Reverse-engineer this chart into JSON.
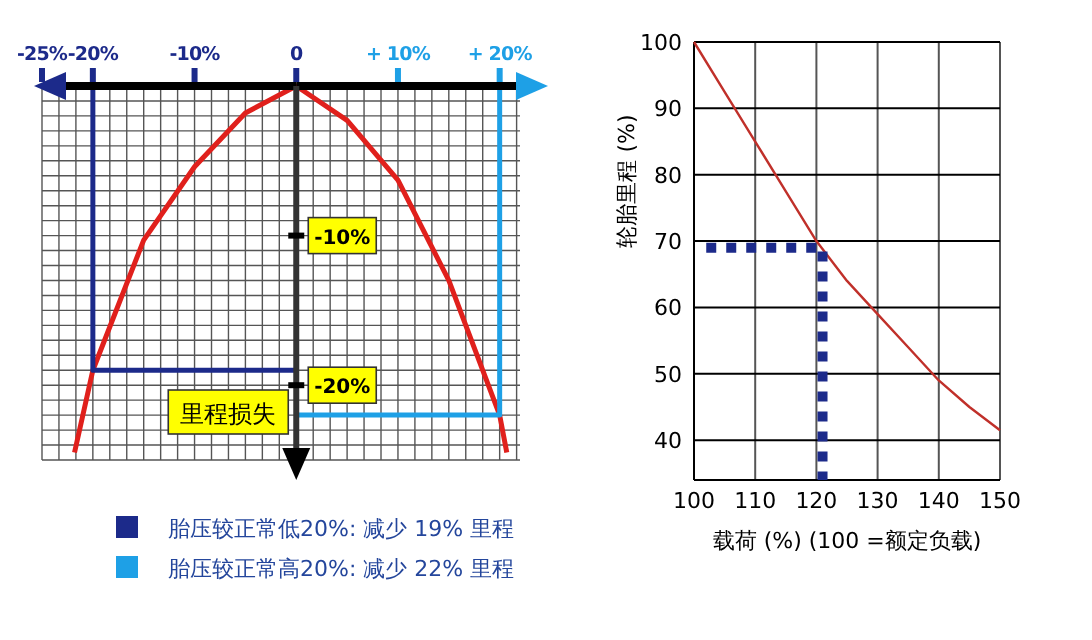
{
  "chart_data": [
    {
      "type": "line",
      "ylabel": "里程损失",
      "xlim": [
        -25,
        22
      ],
      "ylim": [
        -25,
        0
      ],
      "xticks": [
        {
          "value": -25,
          "label": "-25%"
        },
        {
          "value": -20,
          "label": "-20%"
        },
        {
          "value": -10,
          "label": "-10%"
        },
        {
          "value": 0,
          "label": "0"
        },
        {
          "value": 10,
          "label": "+ 10%"
        },
        {
          "value": 20,
          "label": "+ 20%"
        }
      ],
      "yticks": [
        {
          "value": -10,
          "label": "-10%"
        },
        {
          "value": -20,
          "label": "-20%"
        }
      ],
      "grid": true,
      "legend": "bottom",
      "series": [
        {
          "color": "#e0201c",
          "x": [
            -21.8,
            -20,
            -15,
            -10,
            -5,
            0,
            5,
            10,
            15,
            20,
            20.7
          ],
          "values": [
            -24.5,
            -19,
            -10.3,
            -5.4,
            -1.8,
            0,
            -2.3,
            -6.3,
            -13,
            -22,
            -24.5
          ]
        },
        {
          "name": "胎压较正常低20%: 减少 19% 里程",
          "color": "#1c2a8a",
          "x": [
            -20,
            -20,
            0
          ],
          "values": [
            0,
            -19,
            -19
          ]
        },
        {
          "name": "胎压较正常高20%: 减少 22% 里程",
          "color": "#1ea0e6",
          "x": [
            20,
            20,
            0
          ],
          "values": [
            0,
            -22,
            -22
          ]
        }
      ]
    },
    {
      "type": "line",
      "xlabel": "载荷 (%) (100 =额定负载)",
      "ylabel": "轮胎里程 (%)",
      "xlim": [
        100,
        150
      ],
      "ylim": [
        34,
        100
      ],
      "xticks": [
        100,
        110,
        120,
        130,
        140,
        150
      ],
      "yticks": [
        40,
        50,
        60,
        70,
        80,
        90,
        100
      ],
      "grid": true,
      "series": [
        {
          "color": "#c0302a",
          "x": [
            100,
            105,
            110,
            115,
            120,
            125,
            130,
            135,
            140,
            145,
            150
          ],
          "values": [
            100,
            92.5,
            85,
            77.5,
            70,
            64,
            59,
            54,
            49,
            45,
            41.5
          ]
        },
        {
          "color": "#1c2a8a",
          "line_style": "dotted",
          "x": [
            102,
            121,
            121
          ],
          "values": [
            69,
            69,
            34
          ]
        }
      ]
    }
  ]
}
